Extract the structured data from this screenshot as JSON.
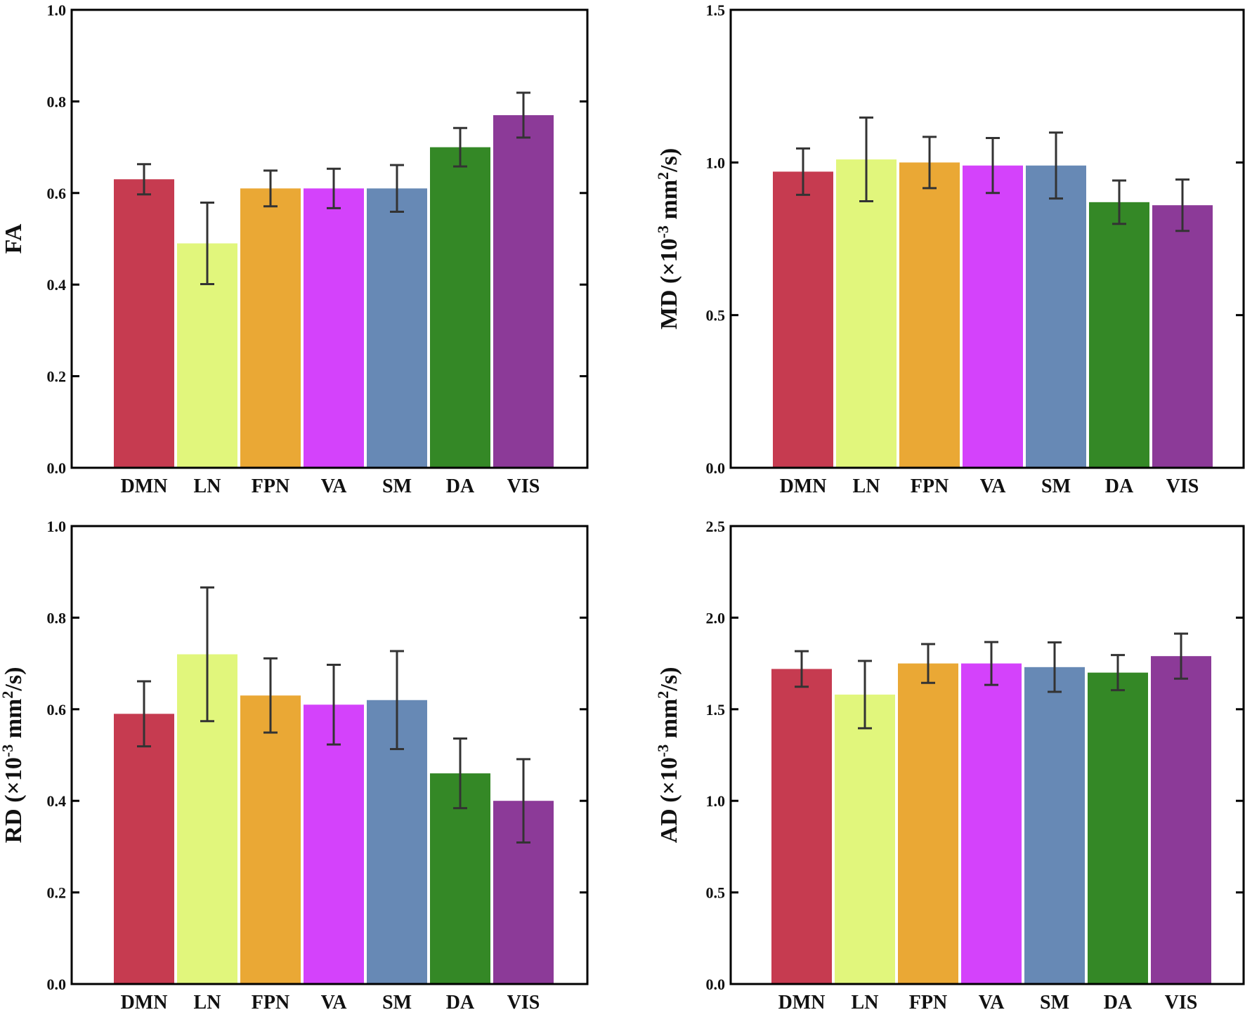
{
  "figure": {
    "colors": {
      "DMN": "#c63b50",
      "LN": "#e1f67c",
      "FPN": "#eaa835",
      "VA": "#d442fb",
      "SM": "#6789b5",
      "DA": "#348826",
      "VIS": "#8c3a98",
      "axis": "#000000",
      "error_bar": "#333333"
    }
  },
  "chart_data": [
    {
      "id": "fa",
      "type": "bar",
      "title": "",
      "xlabel": "",
      "ylabel": "FA",
      "ylim": [
        0.0,
        1.0
      ],
      "yticks": [
        0.0,
        0.2,
        0.4,
        0.6,
        0.8,
        1.0
      ],
      "ytick_labels": [
        "0.0",
        "0.2",
        "0.4",
        "0.6",
        "0.8",
        "1.0"
      ],
      "grid": false,
      "categories": [
        "DMN",
        "LN",
        "FPN",
        "VA",
        "SM",
        "DA",
        "VIS"
      ],
      "values": [
        0.63,
        0.49,
        0.61,
        0.61,
        0.61,
        0.7,
        0.77
      ],
      "errors": [
        0.033,
        0.089,
        0.039,
        0.043,
        0.051,
        0.042,
        0.049
      ]
    },
    {
      "id": "md",
      "type": "bar",
      "title": "",
      "xlabel": "",
      "ylabel": "MD (×10-3 mm2/s)",
      "ylabel_parts": {
        "pre": "MD (×10",
        "sup1": "-3",
        "mid": " mm",
        "sup2": "2",
        "post": "/s)"
      },
      "ylim": [
        0.0,
        1.5
      ],
      "yticks": [
        0.0,
        0.5,
        1.0,
        1.5
      ],
      "ytick_labels": [
        "0.0",
        "0.5",
        "1.0",
        "1.5"
      ],
      "grid": false,
      "categories": [
        "DMN",
        "LN",
        "FPN",
        "VA",
        "SM",
        "DA",
        "VIS"
      ],
      "values": [
        0.97,
        1.01,
        1.0,
        0.99,
        0.99,
        0.87,
        0.86
      ],
      "errors": [
        0.076,
        0.137,
        0.084,
        0.09,
        0.108,
        0.071,
        0.084
      ]
    },
    {
      "id": "rd",
      "type": "bar",
      "title": "",
      "xlabel": "",
      "ylabel": "RD (×10-3 mm2/s)",
      "ylabel_parts": {
        "pre": "RD (×10",
        "sup1": "-3",
        "mid": " mm",
        "sup2": "2",
        "post": "/s)"
      },
      "ylim": [
        0.0,
        1.0
      ],
      "yticks": [
        0.0,
        0.2,
        0.4,
        0.6,
        0.8,
        1.0
      ],
      "ytick_labels": [
        "0.0",
        "0.2",
        "0.4",
        "0.6",
        "0.8",
        "1.0"
      ],
      "grid": false,
      "categories": [
        "DMN",
        "LN",
        "FPN",
        "VA",
        "SM",
        "DA",
        "VIS"
      ],
      "values": [
        0.59,
        0.72,
        0.63,
        0.61,
        0.62,
        0.46,
        0.4
      ],
      "errors": [
        0.071,
        0.146,
        0.081,
        0.087,
        0.107,
        0.076,
        0.091
      ]
    },
    {
      "id": "ad",
      "type": "bar",
      "title": "",
      "xlabel": "",
      "ylabel": "AD (×10-3 mm2/s)",
      "ylabel_parts": {
        "pre": "AD (×10",
        "sup1": "-3",
        "mid": " mm",
        "sup2": "2",
        "post": "/s)"
      },
      "ylim": [
        0.0,
        2.5
      ],
      "yticks": [
        0.0,
        0.5,
        1.0,
        1.5,
        2.0,
        2.5
      ],
      "ytick_labels": [
        "0.0",
        "0.5",
        "1.0",
        "1.5",
        "2.0",
        "2.5"
      ],
      "grid": false,
      "categories": [
        "DMN",
        "LN",
        "FPN",
        "VA",
        "SM",
        "DA",
        "VIS"
      ],
      "values": [
        1.72,
        1.58,
        1.75,
        1.75,
        1.73,
        1.7,
        1.79
      ],
      "errors": [
        0.097,
        0.184,
        0.106,
        0.117,
        0.135,
        0.096,
        0.123
      ]
    }
  ]
}
